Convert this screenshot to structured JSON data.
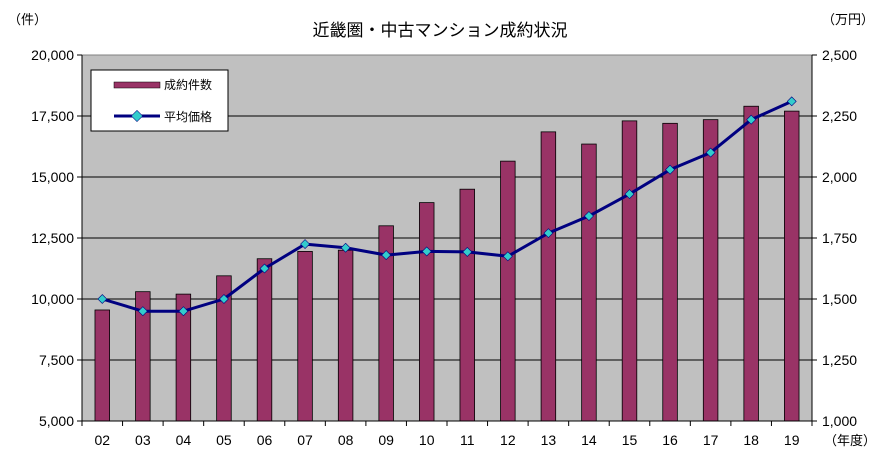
{
  "chart_data": {
    "type": "bar",
    "title": "近畿圏・中古マンション成約状況",
    "left_unit": "（件）",
    "right_unit": "（万円）",
    "x_unit": "（年度）",
    "categories": [
      "02",
      "03",
      "04",
      "05",
      "06",
      "07",
      "08",
      "09",
      "10",
      "11",
      "12",
      "13",
      "14",
      "15",
      "16",
      "17",
      "18",
      "19"
    ],
    "series": [
      {
        "name": "成約件数",
        "kind": "bar",
        "axis": "left",
        "color": "#993366",
        "values": [
          9550,
          10300,
          10200,
          10950,
          11650,
          11950,
          12000,
          13000,
          13950,
          14500,
          15650,
          16850,
          16350,
          17300,
          17200,
          17350,
          17900,
          17700
        ]
      },
      {
        "name": "平均価格",
        "kind": "line",
        "axis": "right",
        "color": "#000080",
        "marker_color": "#33CCCC",
        "values": [
          1500,
          1450,
          1450,
          1500,
          1625,
          1725,
          1710,
          1680,
          1695,
          1693,
          1675,
          1770,
          1840,
          1930,
          2030,
          2100,
          2235,
          2310
        ]
      }
    ],
    "left_axis": {
      "ylim": [
        5000,
        20000
      ],
      "ticks": [
        "5,000",
        "7,500",
        "10,000",
        "12,500",
        "15,000",
        "17,500",
        "20,000"
      ]
    },
    "right_axis": {
      "ylim": [
        1000,
        2500
      ],
      "ticks": [
        "1,000",
        "1,250",
        "1,500",
        "1,750",
        "2,000",
        "2,250",
        "2,500"
      ]
    },
    "legend": {
      "placement": "top-left"
    },
    "plot_background": "#C0C0C0",
    "grid": true
  }
}
